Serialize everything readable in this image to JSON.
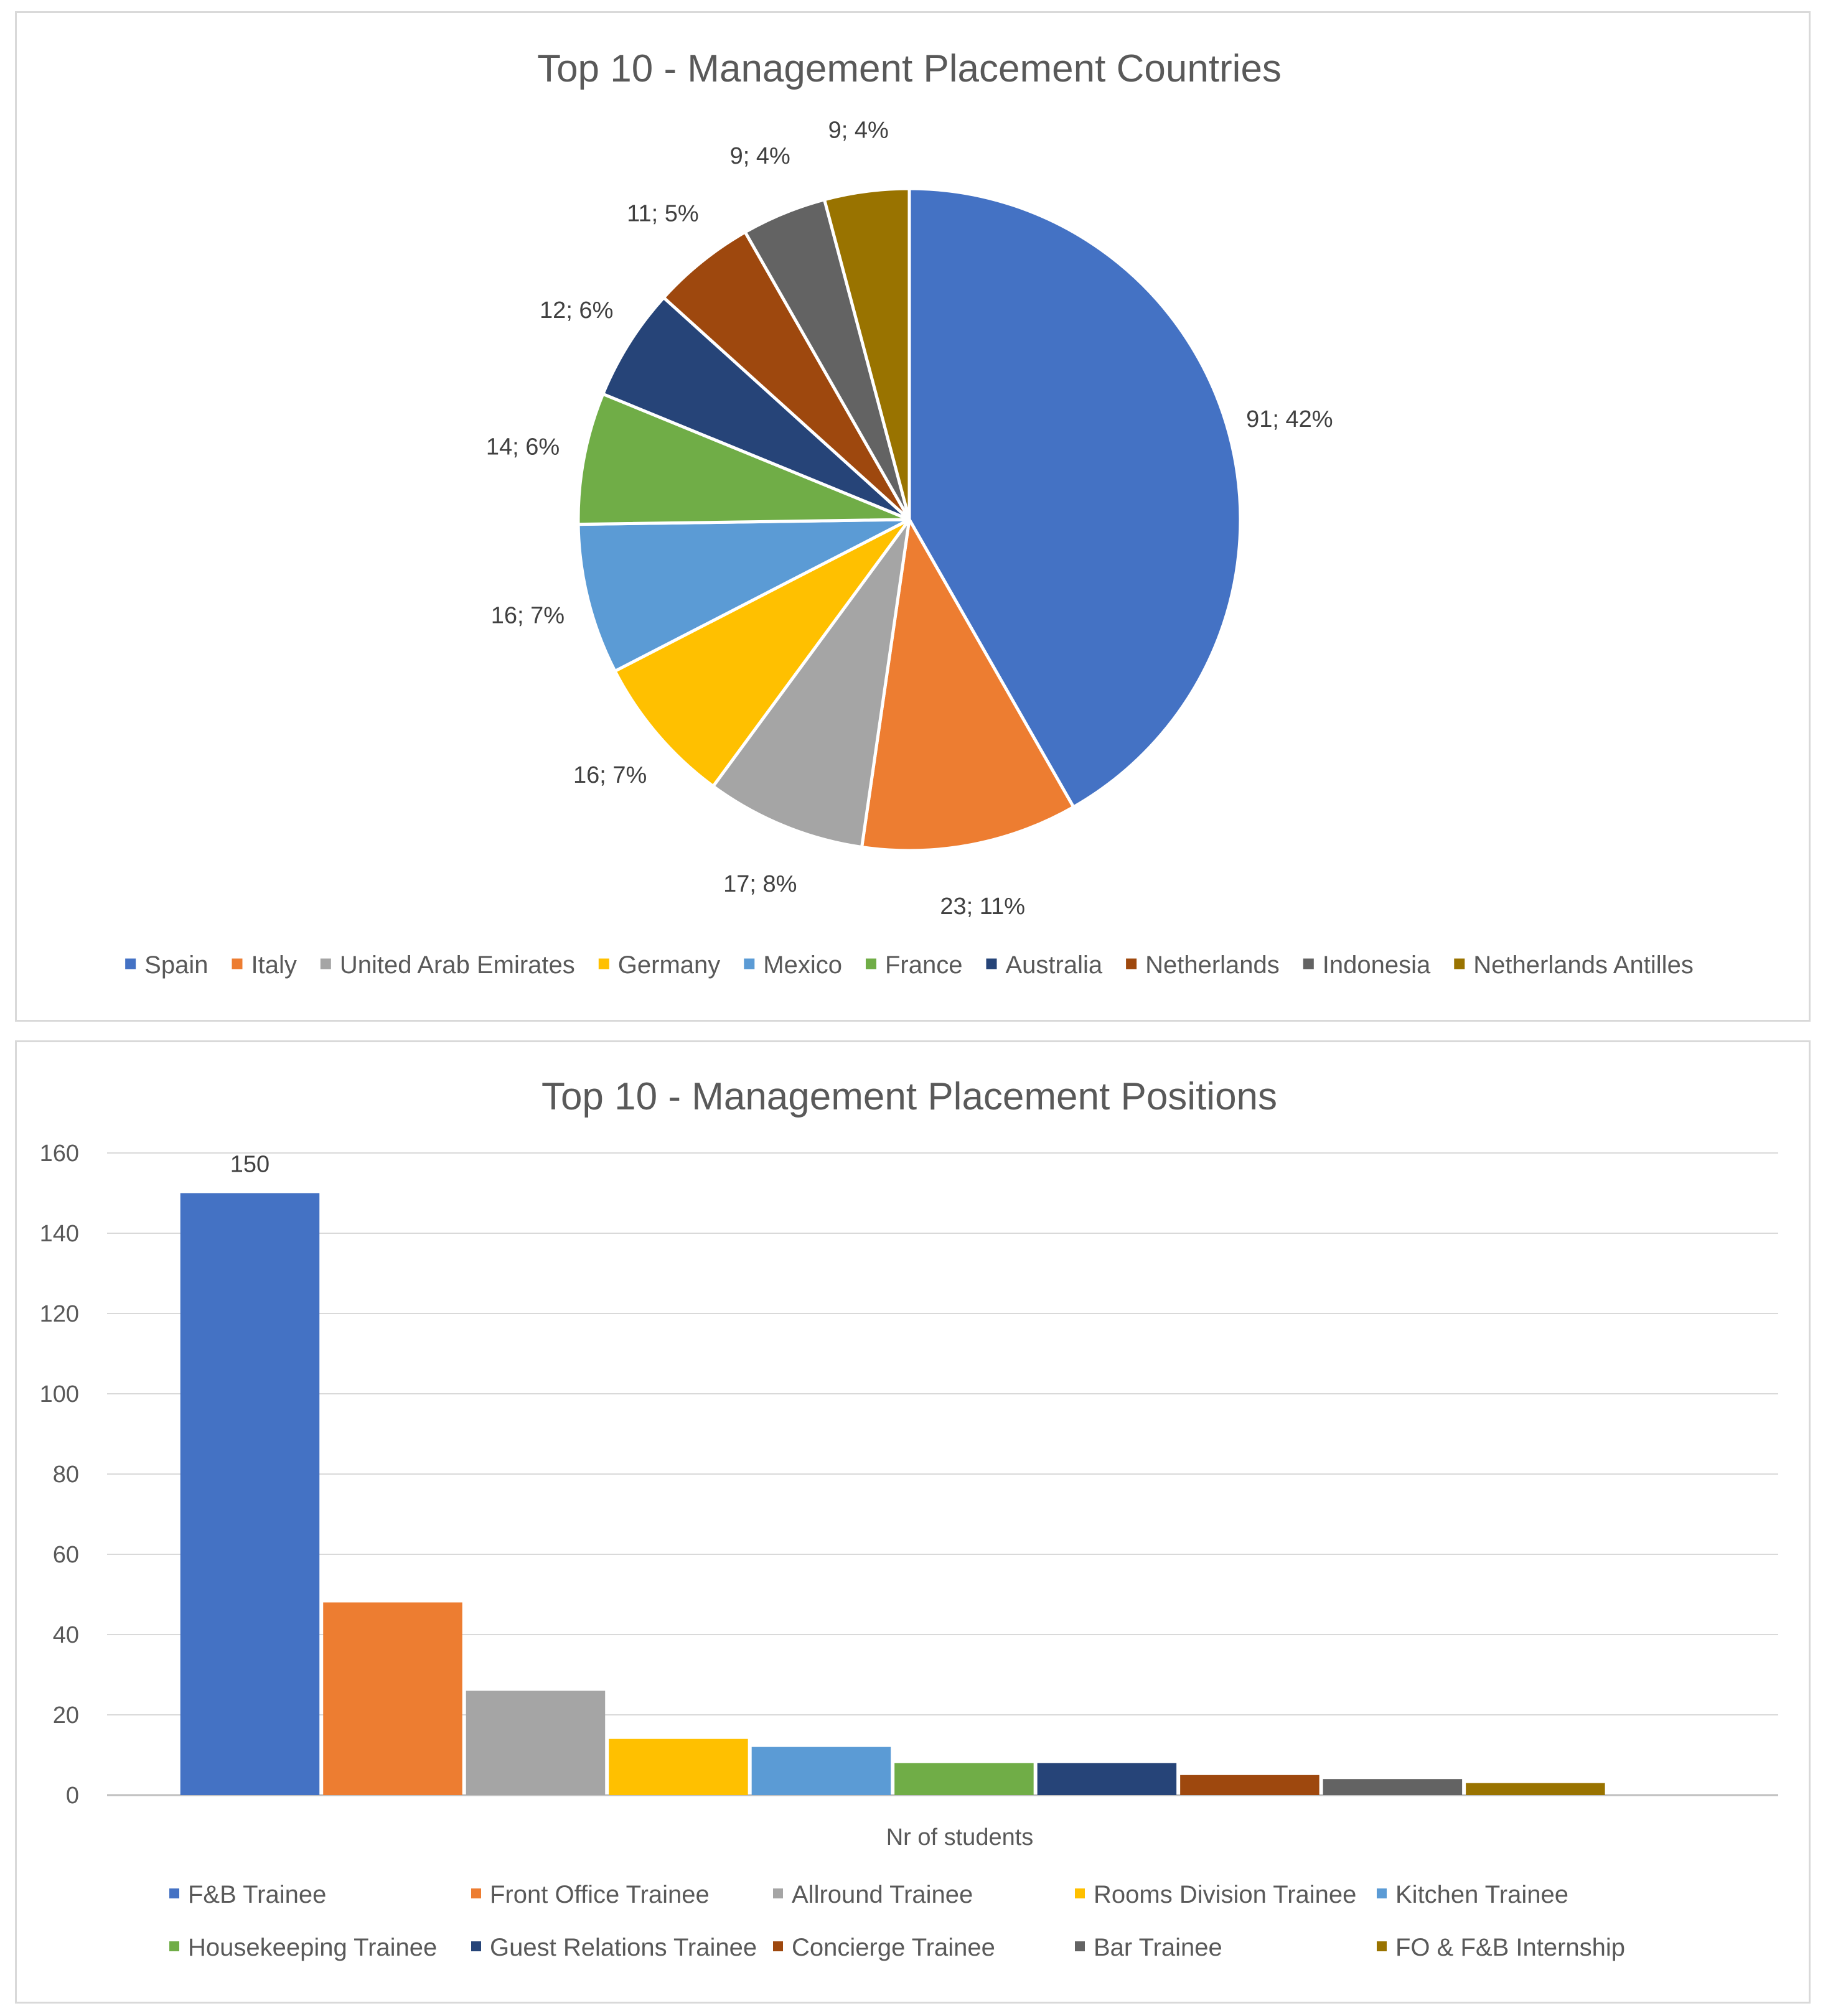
{
  "chart_data": [
    {
      "type": "pie",
      "title": "Top 10 - Management Placement Countries",
      "categories": [
        "Spain",
        "Italy",
        "United Arab Emirates",
        "Germany",
        "Mexico",
        "France",
        "Australia",
        "Netherlands",
        "Indonesia",
        "Netherlands Antilles"
      ],
      "values": [
        91,
        23,
        17,
        16,
        16,
        14,
        12,
        11,
        9,
        9
      ],
      "data_labels": [
        "91; 42%",
        "23; 11%",
        "17; 8%",
        "16; 7%",
        "16; 7%",
        "14; 6%",
        "12; 6%",
        "11; 5%",
        "9; 4%",
        "9; 4%"
      ],
      "colors": [
        "#4472C4",
        "#ED7D31",
        "#A5A5A5",
        "#FFC000",
        "#5B9BD5",
        "#70AD47",
        "#264478",
        "#9E480E",
        "#636363",
        "#997300"
      ],
      "legend_position": "bottom"
    },
    {
      "type": "bar",
      "title": "Top 10 - Management Placement Positions",
      "xlabel": "Nr of students",
      "ylabel": "",
      "ylim": [
        0,
        160
      ],
      "yticks": [
        0,
        20,
        40,
        60,
        80,
        100,
        120,
        140,
        160
      ],
      "grid": true,
      "categories": [
        "F&B Trainee",
        "Front Office Trainee",
        "Allround Trainee",
        "Rooms Division Trainee",
        "Kitchen Trainee",
        "Housekeeping Trainee",
        "Guest Relations Trainee",
        "Concierge Trainee",
        "Bar Trainee",
        "FO & F&B Internship"
      ],
      "values": [
        150,
        48,
        26,
        14,
        12,
        8,
        8,
        5,
        4,
        3
      ],
      "data_labels": [
        "150",
        "",
        "",
        "",
        "",
        "",
        "",
        "",
        "",
        ""
      ],
      "colors": [
        "#4472C4",
        "#ED7D31",
        "#A5A5A5",
        "#FFC000",
        "#5B9BD5",
        "#70AD47",
        "#264478",
        "#9E480E",
        "#636363",
        "#997300"
      ],
      "legend_position": "bottom"
    }
  ]
}
